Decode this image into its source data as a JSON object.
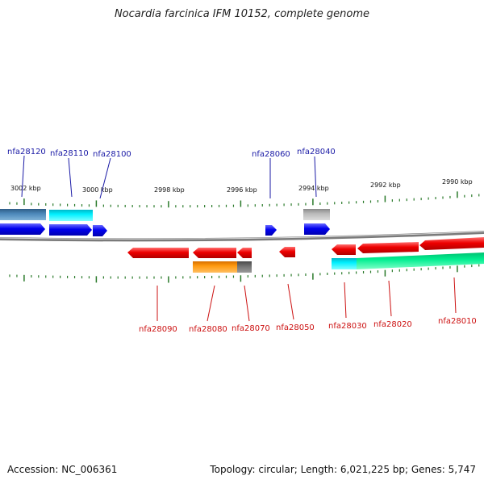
{
  "title": "Nocardia farcinica IFM 10152, complete genome",
  "footer": {
    "accession": "Accession: NC_006361",
    "summary": "Topology: circular; Length: 6,021,225 bp; Genes: 5,747"
  },
  "colors": {
    "forward_label": "#1a1aa6",
    "reverse_label": "#cc1111",
    "backbone": "#8a8a8a",
    "tick": "#2a7a2a"
  },
  "scale_ticks": [
    "3002 kbp",
    "3000 kbp",
    "2998 kbp",
    "2996 kbp",
    "2994 kbp",
    "2992 kbp",
    "2990 kbp"
  ],
  "genes": [
    {
      "label": "nfa28120",
      "strand": "+"
    },
    {
      "label": "nfa28110",
      "strand": "+"
    },
    {
      "label": "nfa28100",
      "strand": "+"
    },
    {
      "label": "nfa28060",
      "strand": "+"
    },
    {
      "label": "nfa28040",
      "strand": "+"
    },
    {
      "label": "nfa28090",
      "strand": "-"
    },
    {
      "label": "nfa28080",
      "strand": "-"
    },
    {
      "label": "nfa28070",
      "strand": "-"
    },
    {
      "label": "nfa28050",
      "strand": "-"
    },
    {
      "label": "nfa28030",
      "strand": "-"
    },
    {
      "label": "nfa28020",
      "strand": "-"
    },
    {
      "label": "nfa28010",
      "strand": "-"
    }
  ]
}
